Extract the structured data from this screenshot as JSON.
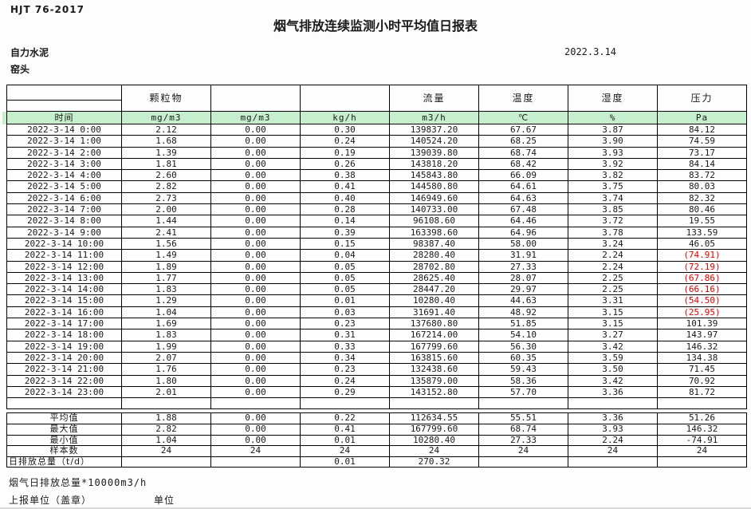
{
  "page": {
    "doc_code": "HJT  76-2017",
    "title": "烟气排放连续监测小时平均值日报表",
    "company": "自力水泥",
    "station": "窑头",
    "date": "2022.3.14"
  },
  "table": {
    "group_headers": [
      "",
      "颗粒物",
      "",
      "",
      "流量",
      "温度",
      "湿度",
      "压力"
    ],
    "unit_row": [
      "时间",
      "mg/m3",
      "mg/m3",
      "kg/h",
      "m3/h",
      "℃",
      "%",
      "Pa"
    ],
    "rows": [
      {
        "time": "2022-3-14 0:00",
        "values": [
          "2.12",
          "0.00",
          "0.30",
          "139837.20",
          "67.67",
          "3.87",
          "84.12"
        ]
      },
      {
        "time": "2022-3-14 1:00",
        "values": [
          "1.68",
          "0.00",
          "0.24",
          "140524.20",
          "68.25",
          "3.90",
          "74.59"
        ]
      },
      {
        "time": "2022-3-14 2:00",
        "values": [
          "1.39",
          "0.00",
          "0.19",
          "139039.80",
          "68.74",
          "3.93",
          "73.17"
        ]
      },
      {
        "time": "2022-3-14 3:00",
        "values": [
          "1.81",
          "0.00",
          "0.26",
          "143818.20",
          "68.42",
          "3.92",
          "84.14"
        ]
      },
      {
        "time": "2022-3-14 4:00",
        "values": [
          "2.60",
          "0.00",
          "0.38",
          "145843.80",
          "66.09",
          "3.82",
          "83.72"
        ]
      },
      {
        "time": "2022-3-14 5:00",
        "values": [
          "2.82",
          "0.00",
          "0.41",
          "144580.80",
          "64.61",
          "3.75",
          "80.03"
        ]
      },
      {
        "time": "2022-3-14 6:00",
        "values": [
          "2.73",
          "0.00",
          "0.40",
          "146949.60",
          "64.63",
          "3.74",
          "82.32"
        ]
      },
      {
        "time": "2022-3-14 7:00",
        "values": [
          "2.00",
          "0.00",
          "0.28",
          "140733.00",
          "67.48",
          "3.85",
          "80.46"
        ]
      },
      {
        "time": "2022-3-14 8:00",
        "values": [
          "1.44",
          "0.00",
          "0.14",
          "96108.60",
          "64.46",
          "3.72",
          "19.55"
        ]
      },
      {
        "time": "2022-3-14 9:00",
        "values": [
          "2.41",
          "0.00",
          "0.39",
          "163398.60",
          "64.96",
          "3.78",
          "133.59"
        ]
      },
      {
        "time": "2022-3-14 10:00",
        "values": [
          "1.56",
          "0.00",
          "0.15",
          "98387.40",
          "58.00",
          "3.24",
          "46.05"
        ]
      },
      {
        "time": "2022-3-14 11:00",
        "values": [
          "1.49",
          "0.00",
          "0.04",
          "28280.40",
          "31.91",
          "2.24",
          "(74.91)"
        ]
      },
      {
        "time": "2022-3-14 12:00",
        "values": [
          "1.89",
          "0.00",
          "0.05",
          "28702.80",
          "27.33",
          "2.24",
          "(72.19)"
        ]
      },
      {
        "time": "2022-3-14 13:00",
        "values": [
          "1.77",
          "0.00",
          "0.05",
          "28625.40",
          "28.07",
          "2.25",
          "(67.86)"
        ]
      },
      {
        "time": "2022-3-14 14:00",
        "values": [
          "1.83",
          "0.00",
          "0.05",
          "28447.20",
          "29.97",
          "2.25",
          "(66.16)"
        ]
      },
      {
        "time": "2022-3-14 15:00",
        "values": [
          "1.29",
          "0.00",
          "0.01",
          "10280.40",
          "44.63",
          "3.31",
          "(54.50)"
        ]
      },
      {
        "time": "2022-3-14 16:00",
        "values": [
          "1.04",
          "0.00",
          "0.03",
          "31691.40",
          "48.92",
          "3.15",
          "(25.95)"
        ]
      },
      {
        "time": "2022-3-14 17:00",
        "values": [
          "1.69",
          "0.00",
          "0.23",
          "137680.80",
          "51.85",
          "3.15",
          "101.39"
        ]
      },
      {
        "time": "2022-3-14 18:00",
        "values": [
          "1.83",
          "0.00",
          "0.31",
          "167214.00",
          "54.10",
          "3.27",
          "143.97"
        ]
      },
      {
        "time": "2022-3-14 19:00",
        "values": [
          "1.99",
          "0.00",
          "0.33",
          "167799.60",
          "56.30",
          "3.42",
          "146.32"
        ]
      },
      {
        "time": "2022-3-14 20:00",
        "values": [
          "2.07",
          "0.00",
          "0.34",
          "163815.60",
          "60.35",
          "3.59",
          "134.38"
        ]
      },
      {
        "time": "2022-3-14 21:00",
        "values": [
          "1.76",
          "0.00",
          "0.23",
          "132438.60",
          "59.43",
          "3.50",
          "71.45"
        ]
      },
      {
        "time": "2022-3-14 22:00",
        "values": [
          "1.80",
          "0.00",
          "0.24",
          "135879.00",
          "58.36",
          "3.42",
          "70.92"
        ]
      },
      {
        "time": "2022-3-14 23:00",
        "values": [
          "2.01",
          "0.00",
          "0.29",
          "143152.80",
          "57.70",
          "3.36",
          "81.72"
        ]
      }
    ],
    "summary": [
      {
        "label": "平均值",
        "align": "center",
        "values": [
          "1.88",
          "0.00",
          "0.22",
          "112634.55",
          "55.51",
          "3.36",
          "51.26"
        ]
      },
      {
        "label": "最大值",
        "align": "center",
        "values": [
          "2.82",
          "0.00",
          "0.41",
          "167799.60",
          "68.74",
          "3.93",
          "146.32"
        ]
      },
      {
        "label": "最小值",
        "align": "center",
        "values": [
          "1.04",
          "0.00",
          "0.01",
          "10280.40",
          "27.33",
          "2.24",
          "-74.91"
        ]
      },
      {
        "label": "样本数",
        "align": "center",
        "values": [
          "24",
          "24",
          "24",
          "24",
          "24",
          "24",
          "24"
        ]
      },
      {
        "label": "日排放总量（t/d）",
        "align": "left",
        "values": [
          "",
          "",
          "0.01",
          "270.32",
          "",
          "",
          ""
        ]
      }
    ]
  },
  "footer": {
    "footnote": "烟气日排放总量*10000m3/h",
    "report_unit_label": "上报单位（盖章）",
    "unit_label": "单位"
  },
  "colors": {
    "header_green": "#c6efce",
    "negative_red": "#e00000"
  }
}
